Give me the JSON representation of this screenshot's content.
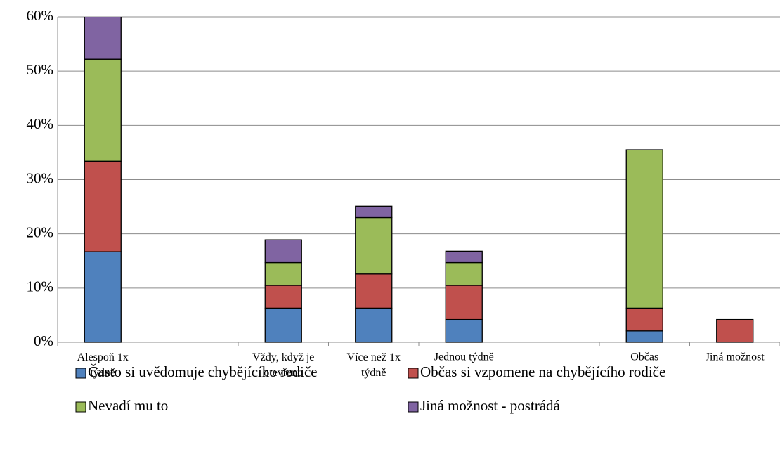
{
  "chart_data": {
    "type": "stacked_bar",
    "categories": [
      "Alespoň 1x\ntýdně",
      null,
      "Vždy, když je\notevřeno",
      "Více než 1x\ntýdně",
      "Jednou týdně",
      null,
      "Občas",
      "Jiná možnost"
    ],
    "series": [
      {
        "name": "Často si uvědomuje chybějícího rodiče",
        "color": "#4f81bd",
        "values": [
          16.7,
          0,
          6.3,
          6.3,
          4.2,
          0,
          2.1,
          0
        ]
      },
      {
        "name": "Občas si vzpomene na chybějícího rodiče",
        "color": "#c0504d",
        "values": [
          16.7,
          0,
          4.2,
          6.3,
          6.3,
          0,
          4.2,
          4.2
        ]
      },
      {
        "name": "Nevadí mu to",
        "color": "#9bbb59",
        "values": [
          18.8,
          0,
          4.2,
          10.4,
          4.2,
          0,
          29.2,
          0
        ]
      },
      {
        "name": "Jiná možnost - postrádá",
        "color": "#8064a2",
        "values": [
          8.3,
          0,
          4.2,
          2.1,
          2.1,
          0,
          0,
          0
        ]
      }
    ],
    "ylim": [
      0,
      60
    ],
    "yticks": [
      {
        "value": 0,
        "label": "0%"
      },
      {
        "value": 10,
        "label": "10%"
      },
      {
        "value": 20,
        "label": "20%"
      },
      {
        "value": 30,
        "label": "30%"
      },
      {
        "value": 40,
        "label": "40%"
      },
      {
        "value": 50,
        "label": "50%"
      },
      {
        "value": 60,
        "label": "60%"
      }
    ],
    "grid": true
  }
}
